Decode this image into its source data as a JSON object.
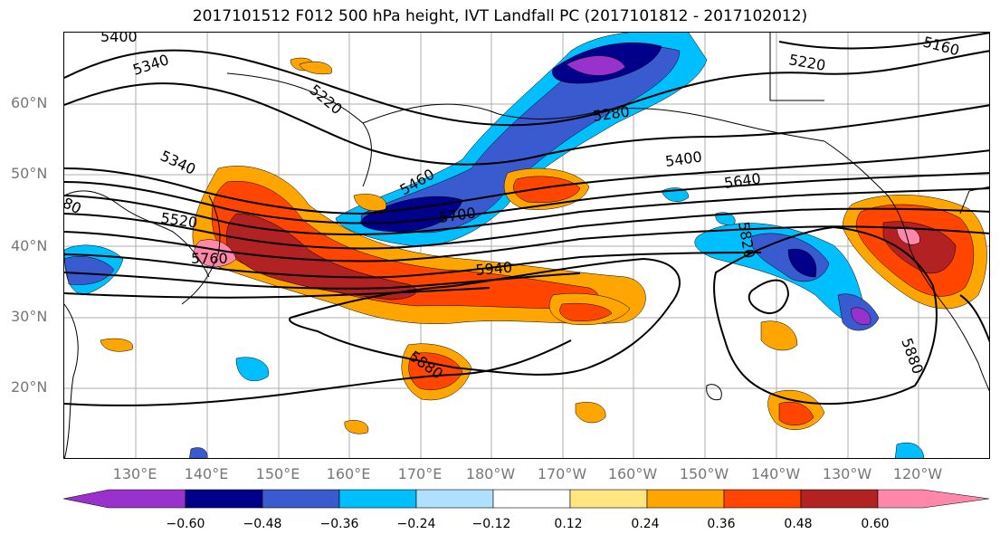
{
  "title": "2017101512 F012 500 hPa height, IVT Landfall PC (2017101812 - 2017102012)",
  "lat_labels": [
    "60°N",
    "50°N",
    "40°N",
    "30°N",
    "20°N"
  ],
  "lon_labels": [
    "130°E",
    "140°E",
    "150°E",
    "160°E",
    "170°E",
    "180°W",
    "170°W",
    "160°W",
    "150°W",
    "140°W",
    "130°W",
    "120°W"
  ],
  "colorbar": {
    "ticks": [
      "−0.60",
      "−0.48",
      "−0.36",
      "−0.24",
      "−0.12",
      "0.12",
      "0.24",
      "0.36",
      "0.48",
      "0.60"
    ],
    "colors": [
      "#9932cc",
      "#00008b",
      "#3a5bd0",
      "#00bfff",
      "#b0e0ff",
      "#ffffff",
      "#ffe680",
      "#ffa500",
      "#ff4500",
      "#b22222",
      "#ff88aa"
    ]
  },
  "contour_labels": [
    "5400",
    "5340",
    "5220",
    "5280",
    "5160",
    "5220",
    "5340",
    "5400",
    "5460",
    "5520",
    "5640",
    "5700",
    "5760",
    "5820",
    "5940",
    "5880",
    "5880",
    "80"
  ],
  "colors": {
    "lat_lon_label": "#777777",
    "grid": "#999999",
    "contour": "#000000"
  }
}
